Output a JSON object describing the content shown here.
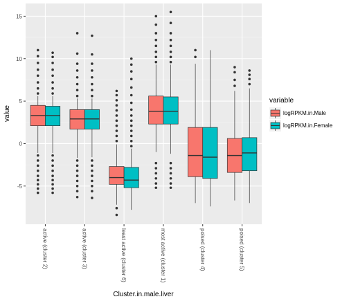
{
  "chart_data": {
    "type": "boxplot",
    "xlabel": "Cluster.in.male.liver",
    "ylabel": "value",
    "ylim": [
      -9.5,
      16.5
    ],
    "yticks": [
      -5,
      0,
      5,
      10,
      15
    ],
    "grid": true,
    "legend": {
      "title": "variable",
      "position": "right",
      "entries": [
        {
          "name": "logRPKM.in.Male",
          "color": "#F8766D"
        },
        {
          "name": "logRPKM.in.Female",
          "color": "#00BFC4"
        }
      ]
    },
    "categories": [
      "active (cluster 2)",
      "active (cluster 3)",
      "least active (cluster 6)",
      "most active (cluster 1)",
      "poised (cluster 4)",
      "poised (cluster 5)"
    ],
    "series": [
      {
        "name": "logRPKM.in.Male",
        "color": "#F8766D",
        "boxes": [
          {
            "lw": -1.1,
            "q1": 2.1,
            "median": 3.3,
            "q3": 4.5,
            "uw": 5.6,
            "outliers": [
              -1.4,
              -2.0,
              -2.6,
              -3.2,
              -3.8,
              -4.3,
              -4.8,
              -5.3,
              -5.8,
              5.9,
              6.5,
              7.2,
              8.0,
              8.7,
              9.5,
              10.3,
              11.0
            ]
          },
          {
            "lw": -1.7,
            "q1": 1.7,
            "median": 2.9,
            "q3": 4.0,
            "uw": 5.3,
            "outliers": [
              -2.0,
              -2.6,
              -3.2,
              -3.8,
              -4.4,
              -5.0,
              -5.6,
              -6.3,
              5.6,
              6.3,
              7.0,
              7.8,
              8.6,
              9.4,
              10.6,
              13.0
            ]
          },
          {
            "lw": -7.2,
            "q1": -4.8,
            "median": -4.0,
            "q3": -2.7,
            "uw": -0.1,
            "outliers": [
              -7.6,
              -8.4,
              0.3,
              0.9,
              1.5,
              2.1,
              2.7,
              3.3,
              3.9,
              4.5,
              5.1,
              5.7,
              6.2
            ]
          },
          {
            "lw": -1.0,
            "q1": 2.3,
            "median": 3.8,
            "q3": 5.6,
            "uw": 9.3,
            "outliers": [
              -2.3,
              -2.9,
              -3.5,
              -4.1,
              -4.7,
              -5.2,
              9.6,
              10.2,
              10.8,
              11.5,
              12.2,
              13.0,
              14.0,
              15.0
            ]
          },
          {
            "lw": -7.0,
            "q1": -3.9,
            "median": -1.4,
            "q3": 1.9,
            "uw": 9.4,
            "outliers": [
              10.2,
              11.0
            ]
          },
          {
            "lw": -6.7,
            "q1": -3.4,
            "median": -1.4,
            "q3": 0.6,
            "uw": 6.2,
            "outliers": [
              6.8,
              7.5,
              8.4,
              9.0
            ]
          }
        ]
      },
      {
        "name": "logRPKM.in.Female",
        "color": "#00BFC4",
        "boxes": [
          {
            "lw": -1.1,
            "q1": 2.1,
            "median": 3.3,
            "q3": 4.4,
            "uw": 5.6,
            "outliers": [
              -1.4,
              -2.0,
              -2.6,
              -3.2,
              -3.8,
              -4.3,
              -4.8,
              -5.3,
              -5.8,
              5.9,
              6.5,
              7.2,
              8.0,
              8.7,
              9.5,
              10.2,
              10.7
            ]
          },
          {
            "lw": -1.6,
            "q1": 1.7,
            "median": 2.9,
            "q3": 4.0,
            "uw": 5.3,
            "outliers": [
              -2.0,
              -2.6,
              -3.2,
              -3.8,
              -4.4,
              -5.0,
              -5.6,
              -6.4,
              5.6,
              6.3,
              7.0,
              7.8,
              8.6,
              9.4,
              10.5,
              12.7
            ]
          },
          {
            "lw": -7.8,
            "q1": -5.2,
            "median": -4.3,
            "q3": -2.8,
            "uw": -0.6,
            "outliers": [
              -0.3,
              0.3,
              0.9,
              1.5,
              2.1,
              2.7,
              3.3,
              4.0,
              4.8,
              5.7,
              6.6,
              7.6,
              8.5,
              9.3,
              10.0
            ]
          },
          {
            "lw": -1.2,
            "q1": 2.3,
            "median": 3.8,
            "q3": 5.5,
            "uw": 9.3,
            "outliers": [
              -2.3,
              -2.9,
              -3.5,
              -4.1,
              -4.7,
              -5.2,
              9.6,
              10.2,
              10.8,
              11.5,
              12.2,
              13.0,
              14.2,
              15.5
            ]
          },
          {
            "lw": -7.4,
            "q1": -4.1,
            "median": -1.6,
            "q3": 1.9,
            "uw": 11.0,
            "outliers": []
          },
          {
            "lw": -7.0,
            "q1": -3.2,
            "median": -1.1,
            "q3": 0.7,
            "uw": 6.5,
            "outliers": [
              7.0,
              7.6,
              8.1,
              8.6
            ]
          }
        ]
      }
    ]
  }
}
